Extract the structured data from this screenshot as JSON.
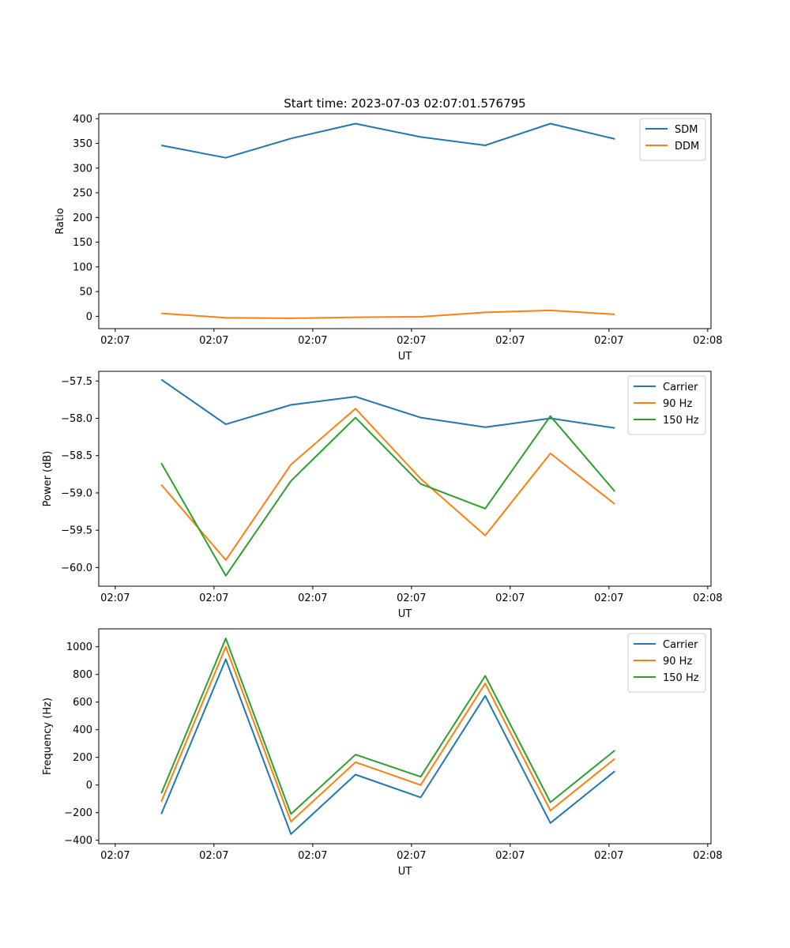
{
  "figure": {
    "suptitle": "Start time: 2023-07-03 02:07:01.576795"
  },
  "chart_data": [
    {
      "type": "line",
      "title": "Start time: 2023-07-03 02:07:01.576795",
      "xlabel": "UT",
      "ylabel": "Ratio",
      "xlim": [
        0,
        9.3
      ],
      "ylim": [
        -25,
        410
      ],
      "x_ticks": [
        0.25,
        1.75,
        3.25,
        4.75,
        6.25,
        7.75,
        9.25
      ],
      "x_tick_labels": [
        "02:07",
        "02:07",
        "02:07",
        "02:07",
        "02:07",
        "02:07",
        "02:08"
      ],
      "y_ticks": [
        0,
        50,
        100,
        150,
        200,
        250,
        300,
        350,
        400
      ],
      "y_tick_labels": [
        "0",
        "50",
        "100",
        "150",
        "200",
        "250",
        "300",
        "350",
        "400"
      ],
      "legend_position": "top-right",
      "x": [
        0.95,
        1.93,
        2.92,
        3.9,
        4.89,
        5.87,
        6.86,
        7.84
      ],
      "series": [
        {
          "name": "SDM",
          "color": "#1f77b4",
          "values": [
            346,
            321,
            360,
            390,
            363,
            346,
            390,
            359
          ]
        },
        {
          "name": "DDM",
          "color": "#ff7f0e",
          "values": [
            6,
            -3,
            -4,
            -2,
            -1,
            8,
            12,
            4
          ]
        }
      ]
    },
    {
      "type": "line",
      "title": "",
      "xlabel": "UT",
      "ylabel": "Power (dB)",
      "xlim": [
        0,
        9.3
      ],
      "ylim": [
        -60.25,
        -57.37
      ],
      "x_ticks": [
        0.25,
        1.75,
        3.25,
        4.75,
        6.25,
        7.75,
        9.25
      ],
      "x_tick_labels": [
        "02:07",
        "02:07",
        "02:07",
        "02:07",
        "02:07",
        "02:07",
        "02:08"
      ],
      "y_ticks": [
        -60.0,
        -59.5,
        -59.0,
        -58.5,
        -58.0,
        -57.5
      ],
      "y_tick_labels": [
        "−60.0",
        "−59.5",
        "−59.0",
        "−58.5",
        "−58.0",
        "−57.5"
      ],
      "legend_position": "top-right",
      "x": [
        0.95,
        1.93,
        2.92,
        3.9,
        4.89,
        5.87,
        6.86,
        7.84
      ],
      "series": [
        {
          "name": "Carrier",
          "color": "#1f77b4",
          "values": [
            -57.48,
            -58.08,
            -57.82,
            -57.71,
            -57.99,
            -58.12,
            -58.0,
            -58.13
          ]
        },
        {
          "name": "90 Hz",
          "color": "#ff7f0e",
          "values": [
            -58.89,
            -59.9,
            -58.62,
            -57.87,
            -58.81,
            -59.57,
            -58.47,
            -59.15
          ]
        },
        {
          "name": "150 Hz",
          "color": "#2ca02c",
          "values": [
            -58.6,
            -60.11,
            -58.84,
            -57.99,
            -58.88,
            -59.21,
            -57.97,
            -58.98
          ]
        }
      ]
    },
    {
      "type": "line",
      "title": "",
      "xlabel": "UT",
      "ylabel": "Frequency (Hz)",
      "xlim": [
        0,
        9.3
      ],
      "ylim": [
        -425,
        1130
      ],
      "x_ticks": [
        0.25,
        1.75,
        3.25,
        4.75,
        6.25,
        7.75,
        9.25
      ],
      "x_tick_labels": [
        "02:07",
        "02:07",
        "02:07",
        "02:07",
        "02:07",
        "02:07",
        "02:08"
      ],
      "y_ticks": [
        -400,
        -200,
        0,
        200,
        400,
        600,
        800,
        1000
      ],
      "y_tick_labels": [
        "−400",
        "−200",
        "0",
        "200",
        "400",
        "600",
        "800",
        "1000"
      ],
      "legend_position": "top-right",
      "x": [
        0.95,
        1.93,
        2.92,
        3.9,
        4.89,
        5.87,
        6.86,
        7.84
      ],
      "series": [
        {
          "name": "Carrier",
          "color": "#1f77b4",
          "values": [
            -210,
            910,
            -355,
            75,
            -90,
            645,
            -275,
            100
          ]
        },
        {
          "name": "90 Hz",
          "color": "#ff7f0e",
          "values": [
            -120,
            1000,
            -265,
            165,
            0,
            735,
            -185,
            190
          ]
        },
        {
          "name": "150 Hz",
          "color": "#2ca02c",
          "values": [
            -60,
            1060,
            -210,
            220,
            60,
            790,
            -125,
            250
          ]
        }
      ]
    }
  ]
}
